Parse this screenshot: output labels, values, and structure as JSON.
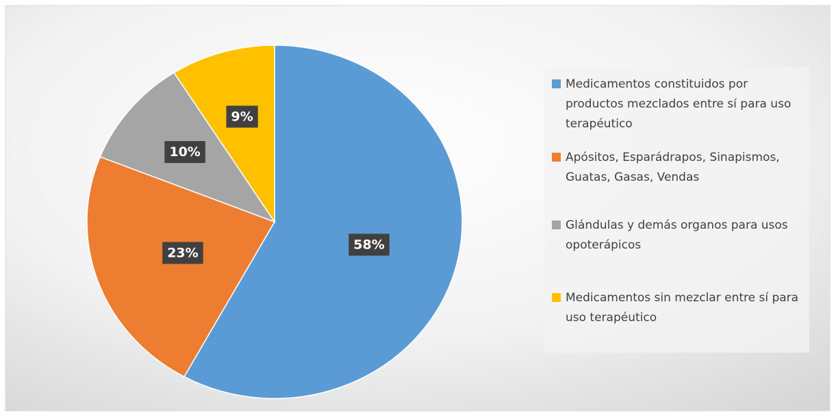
{
  "chart_data": {
    "type": "pie",
    "categories": [
      "Medicamentos constituidos por productos mezclados entre sí para uso terapéutico",
      "Apósitos, Esparádrapos, Sinapismos, Guatas, Gasas, Vendas",
      "Glándulas y demás organos para usos opoterápicos",
      "Medicamentos sin mezclar entre sí para uso terapéutico"
    ],
    "values": [
      58,
      23,
      10,
      9
    ],
    "value_labels": [
      "58%",
      "23%",
      "10%",
      "9%"
    ],
    "colors": [
      "#5b9bd5",
      "#ed7d31",
      "#a5a5a5",
      "#ffc000"
    ],
    "legend": "right"
  }
}
